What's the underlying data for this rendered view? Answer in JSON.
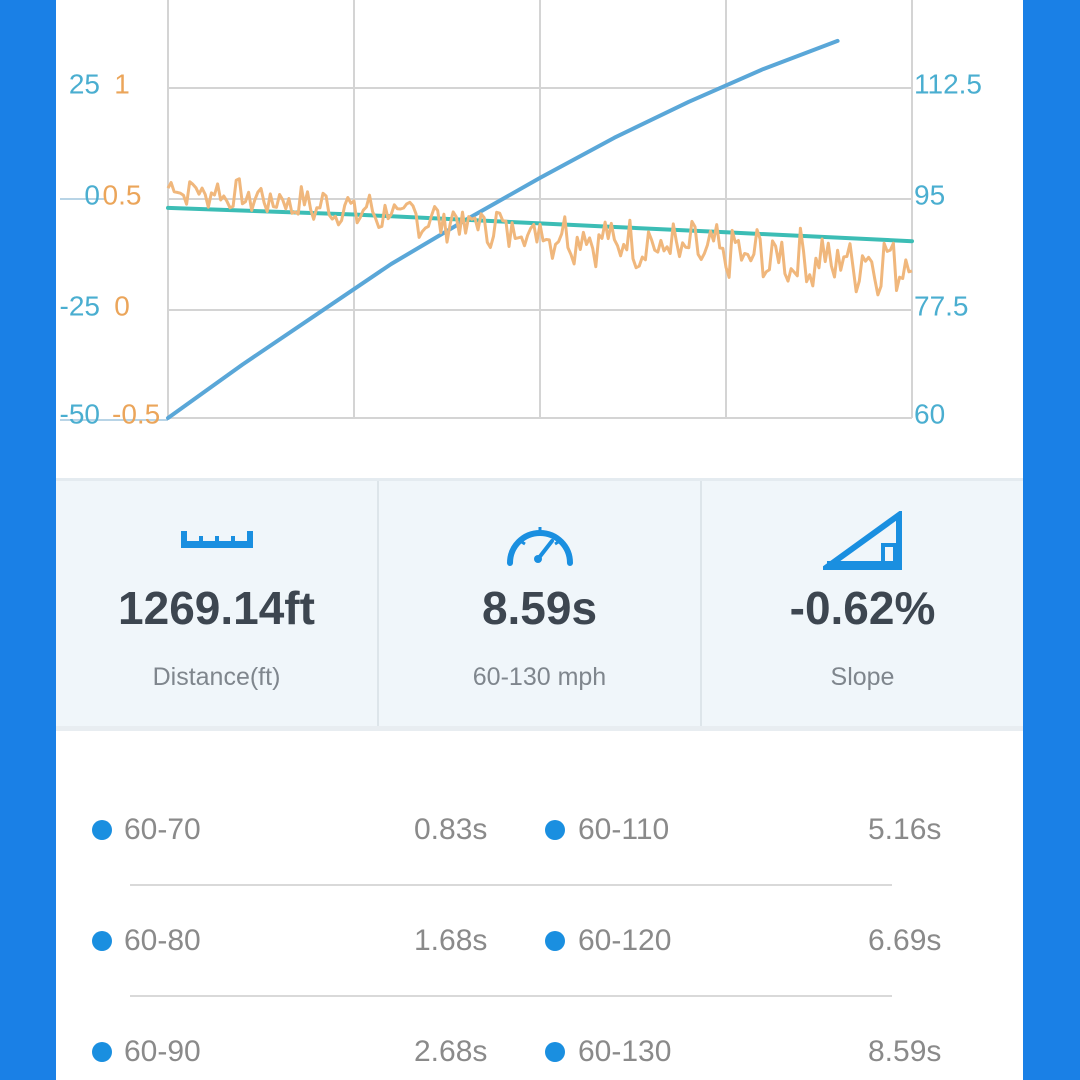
{
  "colors": {
    "frame": "#1a80e6",
    "accel_axis": "#4aaed0",
    "grade_axis": "#eba55a",
    "speed_line": "#5aa7d8",
    "grade_line": "#f0b77c",
    "slope_line": "#3cbdb5",
    "dot": "#1a8fe0"
  },
  "chart": {
    "left_axis_1": [
      "25",
      "0",
      "-25",
      "-50"
    ],
    "left_axis_2": [
      "1",
      "0.5",
      "0",
      "-0.5"
    ],
    "right_axis": [
      "112.5",
      "95",
      "77.5",
      "60"
    ]
  },
  "chart_data": {
    "type": "line",
    "x": [
      0,
      1,
      2,
      3,
      4
    ],
    "xlim": [
      0,
      4
    ],
    "grid": true,
    "series": [
      {
        "axis": "right",
        "color": "#5aa7d8",
        "x": [
          0,
          0.4,
          0.8,
          1.2,
          1.6,
          2.0,
          2.4,
          2.8,
          3.2,
          3.6
        ],
        "values": [
          60,
          68.5,
          76.5,
          84.5,
          91.5,
          98.2,
          104.6,
          110.3,
          115.5,
          120.0
        ],
        "ylim": [
          60,
          130
        ]
      },
      {
        "axis": "left_1",
        "color": "#3cbdb5",
        "x": [
          0,
          1,
          2,
          3,
          4
        ],
        "values": [
          -2,
          -3.5,
          -5.5,
          -7.5,
          -9.5
        ],
        "ylim": [
          -50,
          50
        ]
      },
      {
        "axis": "left_2",
        "color": "#f0b77c",
        "noisy": true,
        "x": [
          0,
          0.5,
          1,
          1.5,
          2,
          2.5,
          3,
          3.5,
          4
        ],
        "values": [
          0.55,
          0.5,
          0.45,
          0.4,
          0.35,
          0.3,
          0.25,
          0.22,
          0.22
        ],
        "ylim": [
          -0.5,
          1.5
        ]
      }
    ]
  },
  "stats": [
    {
      "icon": "ruler-icon",
      "value": "1269.14ft",
      "label": "Distance(ft)"
    },
    {
      "icon": "speedometer-icon",
      "value": "8.59s",
      "label": "60-130 mph"
    },
    {
      "icon": "slope-icon",
      "value": "-0.62%",
      "label": "Slope"
    }
  ],
  "splits": [
    {
      "a_label": "60-70",
      "a_time": "0.83s",
      "b_label": "60-110",
      "b_time": "5.16s"
    },
    {
      "a_label": "60-80",
      "a_time": "1.68s",
      "b_label": "60-120",
      "b_time": "6.69s"
    },
    {
      "a_label": "60-90",
      "a_time": "2.68s",
      "b_label": "60-130",
      "b_time": "8.59s"
    }
  ]
}
